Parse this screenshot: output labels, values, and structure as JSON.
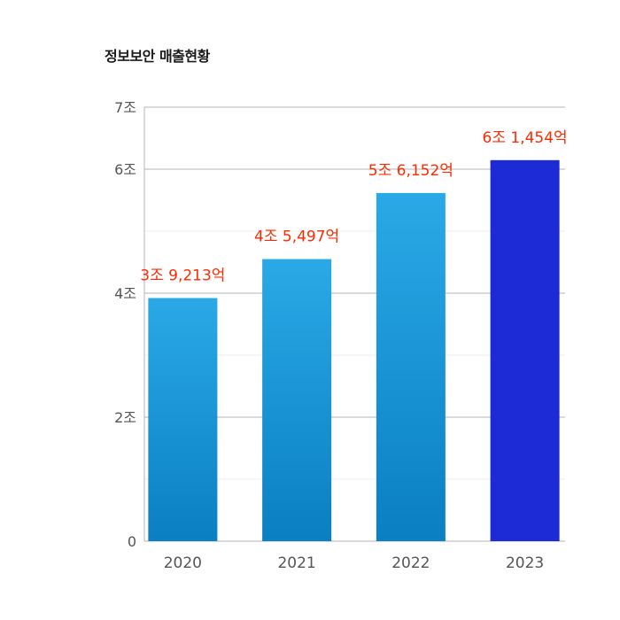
{
  "chart_data": {
    "type": "bar",
    "title": "정보보안 매출현황",
    "categories": [
      "2020",
      "2021",
      "2022",
      "2023"
    ],
    "values": [
      3.9213,
      4.5497,
      5.6152,
      6.1454
    ],
    "data_labels": [
      "3조 9,213억",
      "4조 5,497억",
      "5조 6,152억",
      "6조 1,454억"
    ],
    "yticks": [
      {
        "value": 0,
        "label": "0"
      },
      {
        "value": 2,
        "label": "2조"
      },
      {
        "value": 4,
        "label": "4조"
      },
      {
        "value": 6,
        "label": "6조"
      },
      {
        "value": 7,
        "label": "7조"
      }
    ],
    "minor_grid": [
      1,
      3,
      5
    ],
    "ylim": [
      0,
      7
    ],
    "xlabel": "",
    "ylabel": "",
    "grid": true,
    "colors": {
      "bar_top": "#2aa9e6",
      "bar_bottom": "#0a7fc2",
      "highlight_bar": "#1d2bd6",
      "data_label": "#ff2a00",
      "grid_major": "#b3b3b3",
      "grid_minor": "#eeeeee",
      "axis_text": "#555555"
    }
  }
}
